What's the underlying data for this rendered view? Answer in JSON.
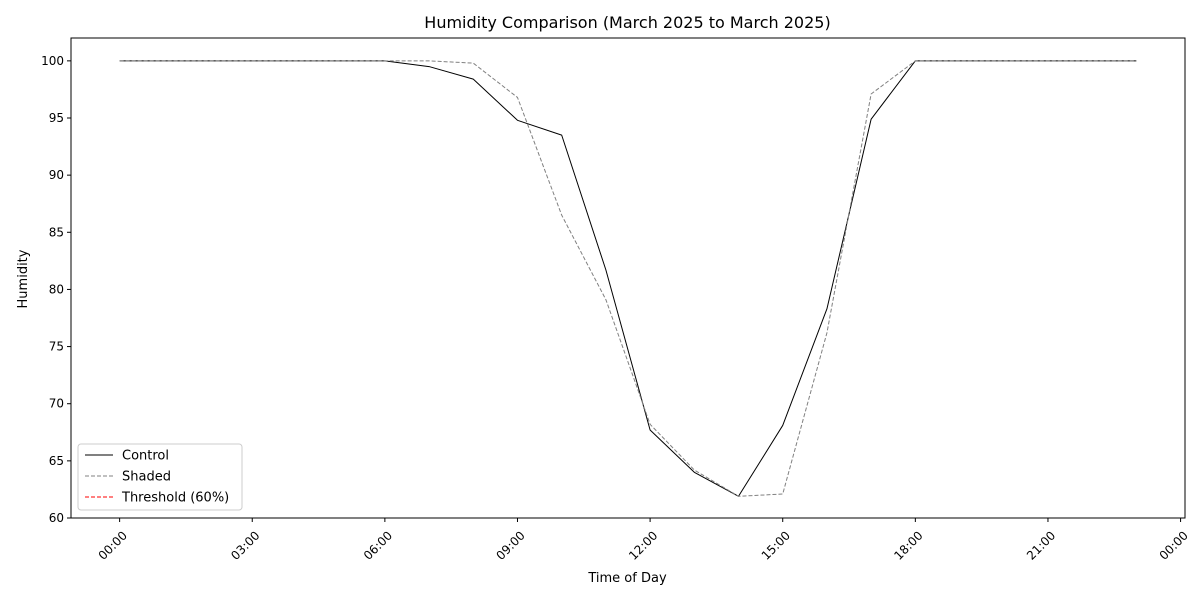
{
  "chart_data": {
    "type": "line",
    "title": "Humidity Comparison (March 2025 to March 2025)",
    "xlabel": "Time of Day",
    "ylabel": "Humidity",
    "xlim": [
      -1.1,
      24.1
    ],
    "ylim": [
      60,
      102
    ],
    "x_tick_values": [
      0,
      3,
      6,
      9,
      12,
      15,
      18,
      21,
      24
    ],
    "x_tick_labels": [
      "00:00",
      "03:00",
      "06:00",
      "09:00",
      "12:00",
      "15:00",
      "18:00",
      "21:00",
      "00:00"
    ],
    "y_tick_values": [
      60,
      65,
      70,
      75,
      80,
      85,
      90,
      95,
      100
    ],
    "y_tick_labels": [
      "60",
      "65",
      "70",
      "75",
      "80",
      "85",
      "90",
      "95",
      "100"
    ],
    "grid": false,
    "legend_position": "lower-left",
    "x": [
      0,
      1,
      2,
      3,
      4,
      5,
      6,
      7,
      8,
      9,
      10,
      11,
      12,
      13,
      14,
      15,
      16,
      17,
      18,
      19,
      20,
      21,
      22,
      23
    ],
    "series": [
      {
        "name": "Control",
        "color": "#000000",
        "style": "solid",
        "values": [
          100,
          100,
          100,
          100,
          100,
          100,
          100,
          99.5,
          98.4,
          94.8,
          93.5,
          81.7,
          67.7,
          64.0,
          61.9,
          68.1,
          78.3,
          94.9,
          100,
          100,
          100,
          100,
          100,
          100
        ]
      },
      {
        "name": "Shaded",
        "color": "#808080",
        "style": "dashed",
        "values": [
          100,
          100,
          100,
          100,
          100,
          100,
          100,
          100,
          99.8,
          96.8,
          86.5,
          79.1,
          68.2,
          64.2,
          61.9,
          62.1,
          76.2,
          97.1,
          100,
          100,
          100,
          100,
          100,
          100
        ]
      },
      {
        "name": "Threshold (60%)",
        "color": "#ff0000",
        "style": "dashed",
        "type": "hline",
        "y": 60
      }
    ]
  }
}
